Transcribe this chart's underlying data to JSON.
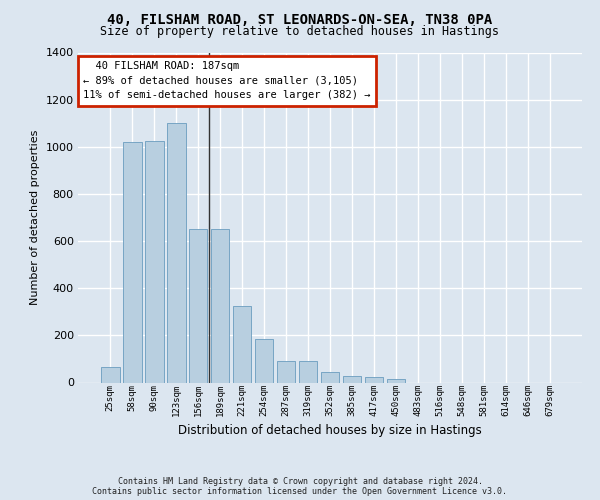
{
  "title": "40, FILSHAM ROAD, ST LEONARDS-ON-SEA, TN38 0PA",
  "subtitle": "Size of property relative to detached houses in Hastings",
  "xlabel": "Distribution of detached houses by size in Hastings",
  "ylabel": "Number of detached properties",
  "categories": [
    "25sqm",
    "58sqm",
    "90sqm",
    "123sqm",
    "156sqm",
    "189sqm",
    "221sqm",
    "254sqm",
    "287sqm",
    "319sqm",
    "352sqm",
    "385sqm",
    "417sqm",
    "450sqm",
    "483sqm",
    "516sqm",
    "548sqm",
    "581sqm",
    "614sqm",
    "646sqm",
    "679sqm"
  ],
  "values": [
    65,
    1020,
    1025,
    1100,
    650,
    650,
    325,
    185,
    90,
    90,
    45,
    28,
    25,
    15,
    0,
    0,
    0,
    0,
    0,
    0,
    0
  ],
  "bar_color": "#b8cfe0",
  "bar_edge_color": "#6a9cbf",
  "ylim": [
    0,
    1400
  ],
  "yticks": [
    0,
    200,
    400,
    600,
    800,
    1000,
    1200,
    1400
  ],
  "vline_idx": 5,
  "vline_color": "#333333",
  "annotation_line1": "  40 FILSHAM ROAD: 187sqm",
  "annotation_line2": "← 89% of detached houses are smaller (3,105)",
  "annotation_line3": "11% of semi-detached houses are larger (382) →",
  "annotation_box_facecolor": "#ffffff",
  "annotation_box_edgecolor": "#cc2200",
  "bg_color": "#dce6f0",
  "plot_bg_color": "#dce6f0",
  "grid_color": "#ffffff",
  "footer_text": "Contains HM Land Registry data © Crown copyright and database right 2024.\nContains public sector information licensed under the Open Government Licence v3.0."
}
